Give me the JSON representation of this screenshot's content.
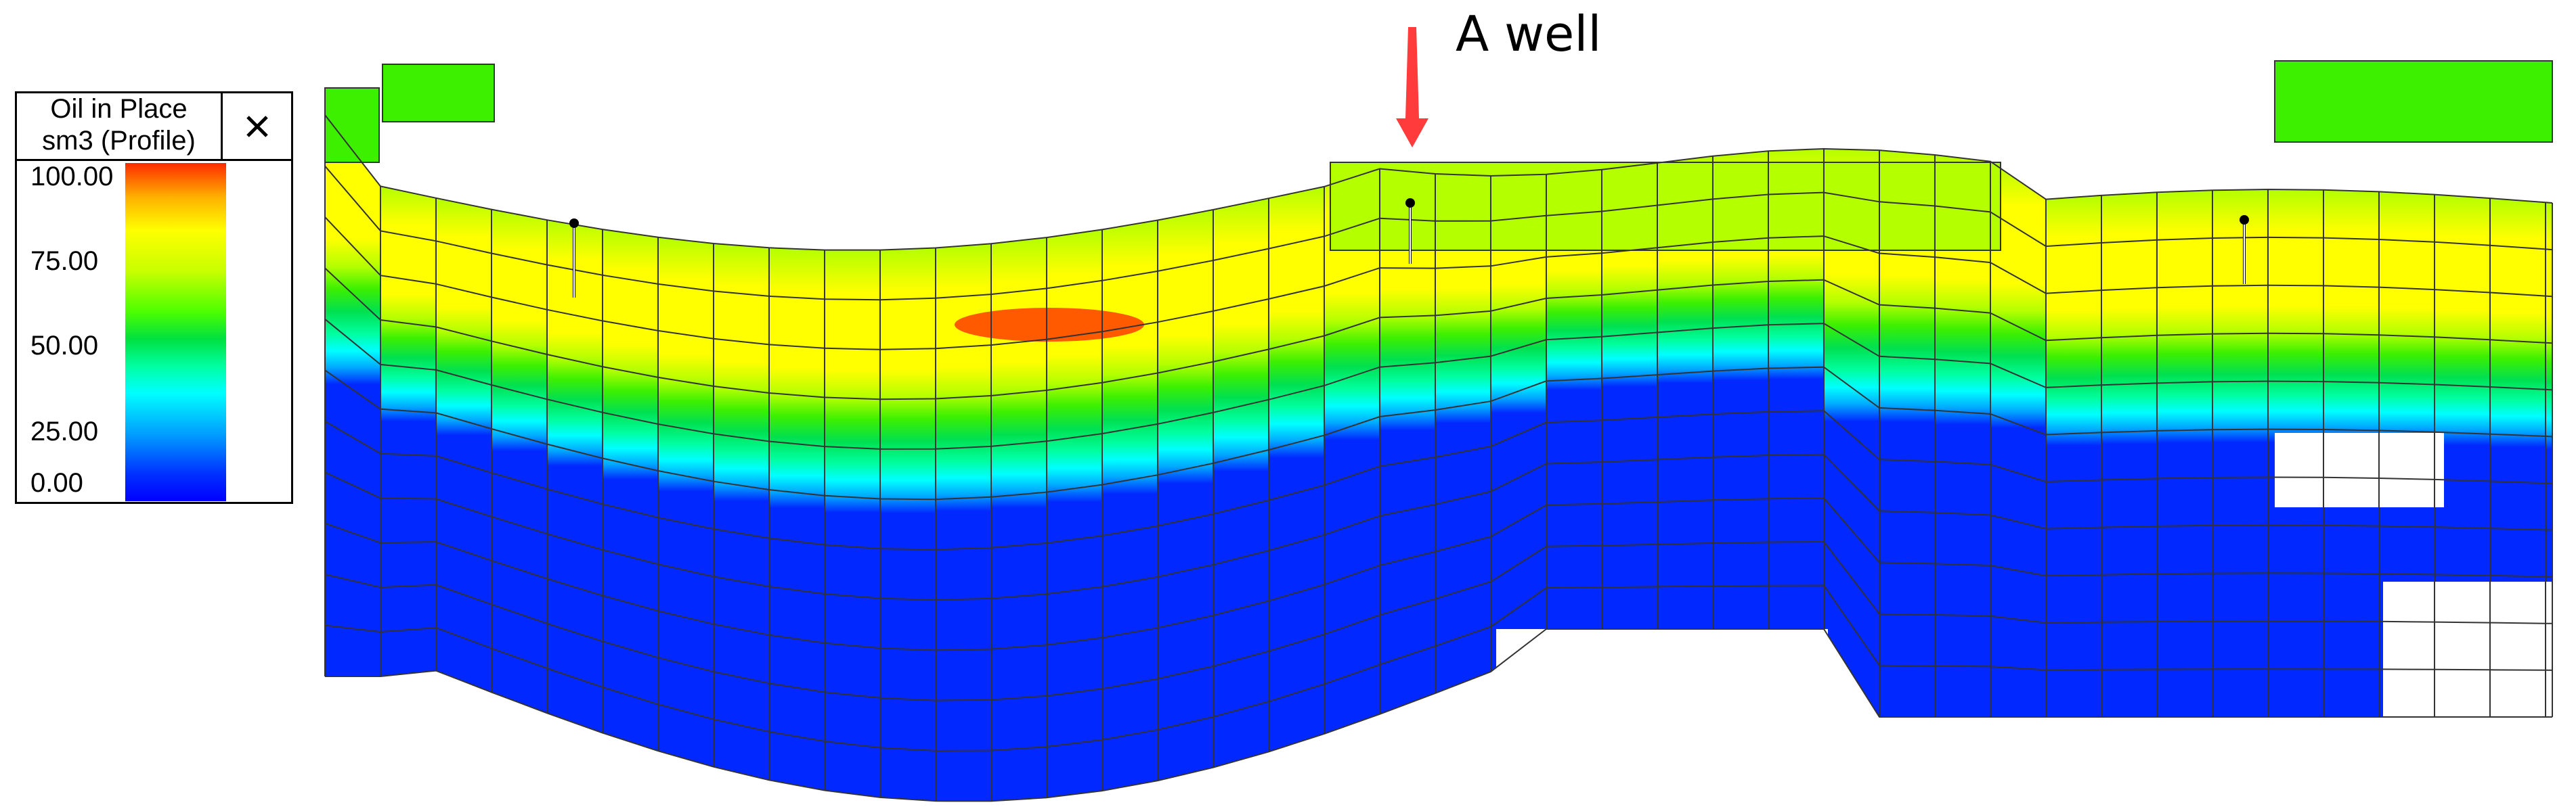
{
  "legend": {
    "title_line1": "Oil in Place",
    "title_line2": "sm3 (Profile)",
    "ticks": [
      "100.00",
      "75.00",
      "50.00",
      "25.00",
      "0.00"
    ],
    "close_icon": "close-icon"
  },
  "annotation": {
    "label": "A well",
    "arrow_color": "#ff3b3b",
    "arrow_icon": "down-arrow-icon"
  },
  "colors": {
    "high": "#ff5a00",
    "yellow": "#ffff00",
    "lime": "#b4ff00",
    "green": "#3cf000",
    "cyan": "#00ffff",
    "water": "#0028ff",
    "grid": "#333333"
  }
}
